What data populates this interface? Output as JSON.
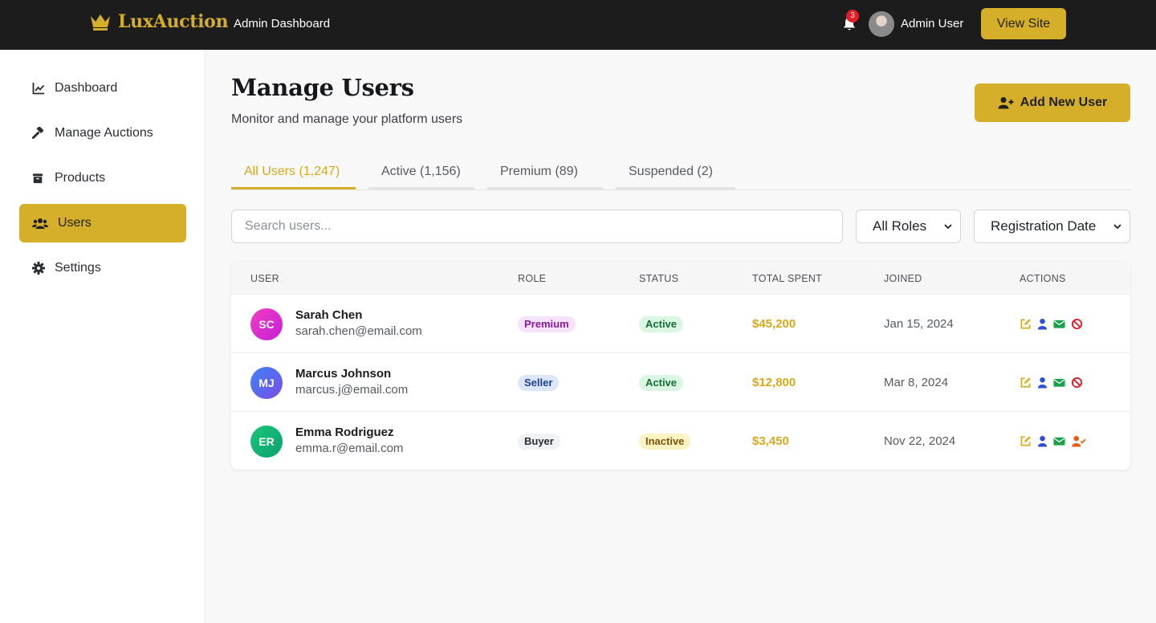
{
  "header": {
    "brand": "LuxAuction",
    "subtitle": "Admin Dashboard",
    "notification_count": "3",
    "user_name": "Admin User",
    "view_site_label": "View Site"
  },
  "sidebar": {
    "items": [
      {
        "label": "Dashboard",
        "icon": "chart-line-icon",
        "active": false
      },
      {
        "label": "Manage Auctions",
        "icon": "gavel-icon",
        "active": false
      },
      {
        "label": "Products",
        "icon": "box-icon",
        "active": false
      },
      {
        "label": "Users",
        "icon": "users-icon",
        "active": true
      },
      {
        "label": "Settings",
        "icon": "gear-icon",
        "active": false
      }
    ]
  },
  "main": {
    "title": "Manage Users",
    "subtitle": "Monitor and manage your platform users",
    "add_user_label": "Add New User",
    "tabs": [
      {
        "label": "All Users (1,247)",
        "active": true
      },
      {
        "label": "Active (1,156)",
        "active": false
      },
      {
        "label": "Premium (89)",
        "active": false
      },
      {
        "label": "Suspended (2)",
        "active": false
      }
    ],
    "search_placeholder": "Search users...",
    "role_filter": "All Roles",
    "sort_filter": "Registration Date"
  },
  "table": {
    "columns": [
      "USER",
      "ROLE",
      "STATUS",
      "TOTAL SPENT",
      "JOINED",
      "ACTIONS"
    ],
    "rows": [
      {
        "initials": "SC",
        "name": "Sarah Chen",
        "email": "sarah.chen@email.com",
        "role": "Premium",
        "status": "Active",
        "spent": "$45,200",
        "joined": "Jan 15, 2024",
        "last_action": "ban-icon"
      },
      {
        "initials": "MJ",
        "name": "Marcus Johnson",
        "email": "marcus.j@email.com",
        "role": "Seller",
        "status": "Active",
        "spent": "$12,800",
        "joined": "Mar 8, 2024",
        "last_action": "ban-icon"
      },
      {
        "initials": "ER",
        "name": "Emma Rodriguez",
        "email": "emma.r@email.com",
        "role": "Buyer",
        "status": "Inactive",
        "spent": "$3,450",
        "joined": "Nov 22, 2024",
        "last_action": "user-check-icon"
      }
    ]
  },
  "colors": {
    "accent": "#d6af2a",
    "topbar": "#1c1c1c",
    "edit_icon": "#d6a91c",
    "view_icon": "#2f4fd8",
    "mail_icon": "#18a04a",
    "ban_icon": "#e11d2a",
    "activate_icon": "#e85d0c"
  }
}
